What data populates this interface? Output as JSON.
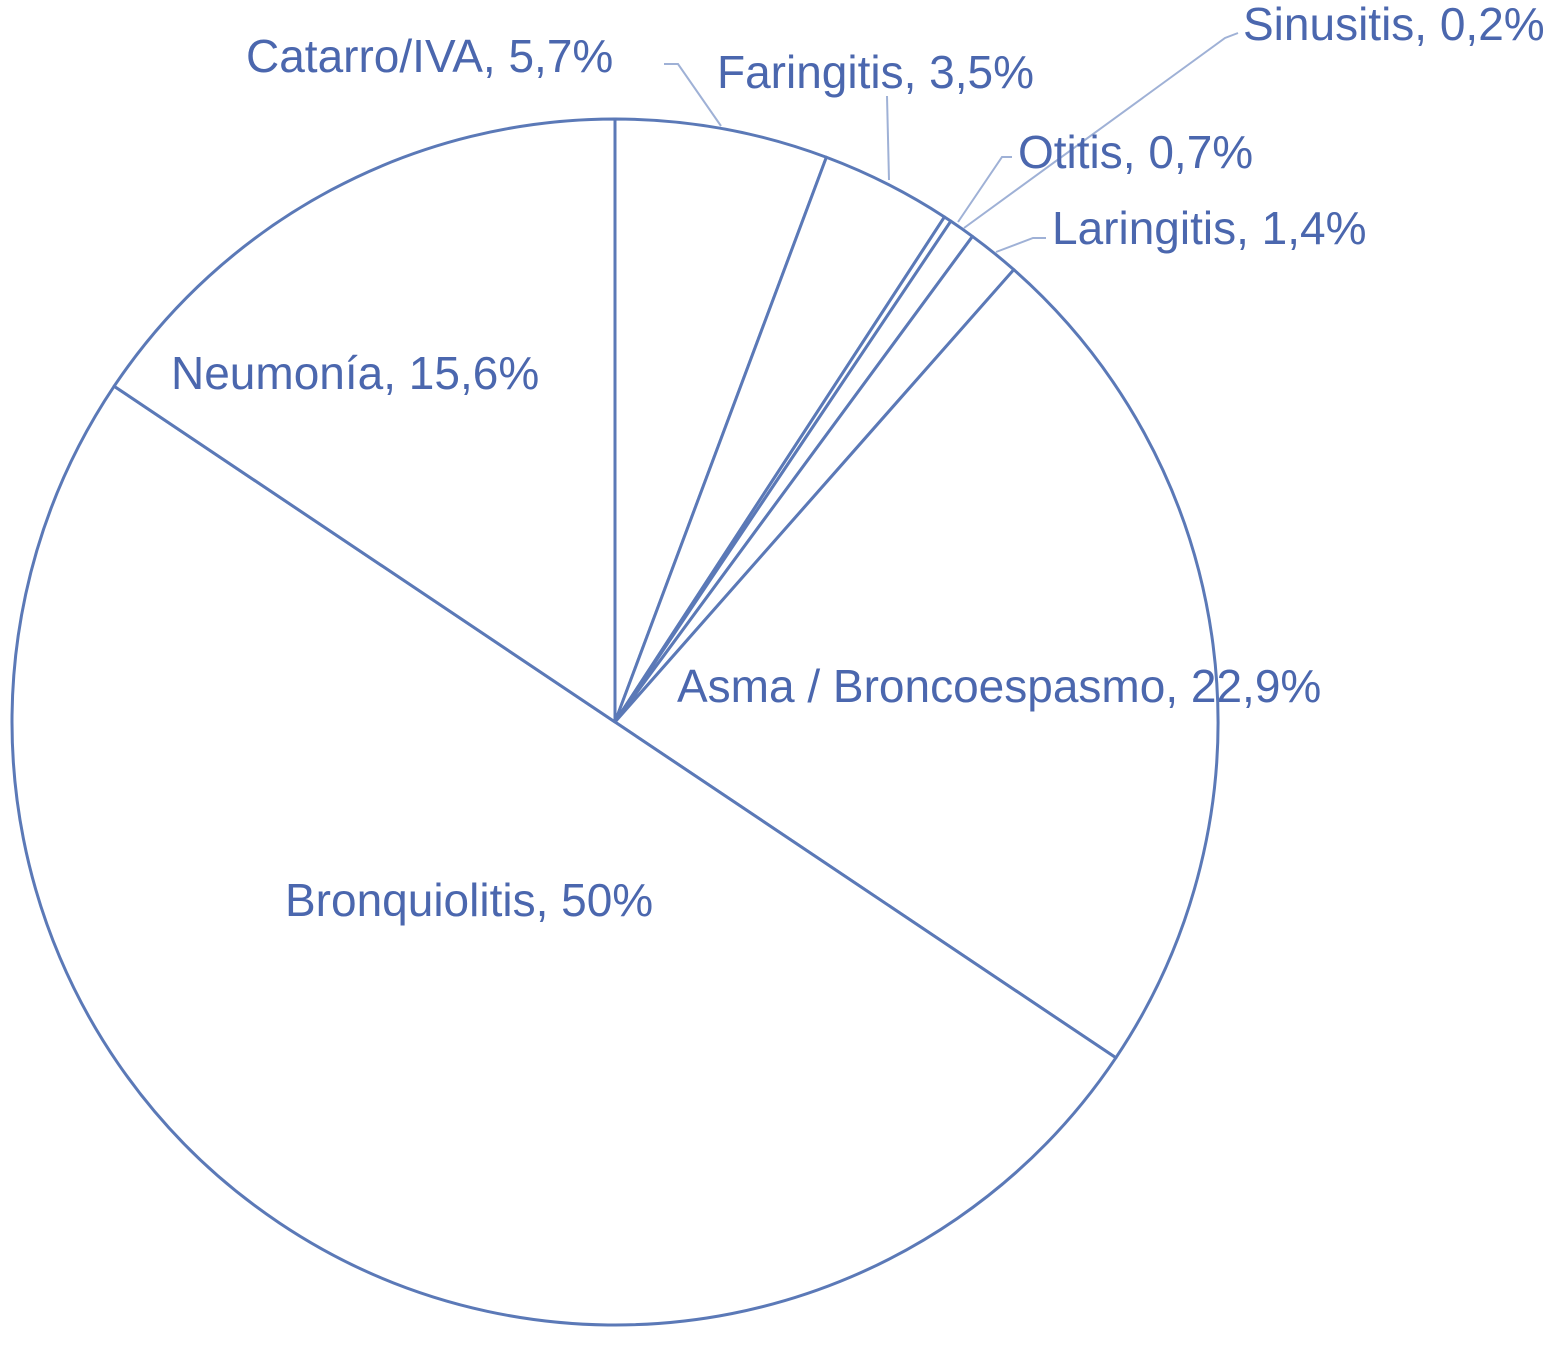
{
  "chart_data": {
    "type": "pie",
    "title": "",
    "colors": {
      "stroke": "#5B79B7",
      "fill": "#ffffff",
      "text": "#4B67AE",
      "leader": "#9FB1D6"
    },
    "start": "12 o'clock",
    "direction": "clockwise",
    "slices": [
      {
        "label": "Catarro/IVA, 5,7%",
        "name": "Catarro/IVA",
        "value": 5.7
      },
      {
        "label": "Faringitis, 3,5%",
        "name": "Faringitis",
        "value": 3.5
      },
      {
        "label": "Sinusitis, 0,2%",
        "name": "Sinusitis",
        "value": 0.2
      },
      {
        "label": "Otitis, 0,7%",
        "name": "Otitis",
        "value": 0.7
      },
      {
        "label": "Laringitis, 1,4%",
        "name": "Laringitis",
        "value": 1.4
      },
      {
        "label": "Asma / Broncoespasmo, 22,9%",
        "name": "Asma / Broncoespasmo",
        "value": 22.9
      },
      {
        "label": "Bronquiolitis, 50%",
        "name": "Bronquiolitis",
        "value": 50
      },
      {
        "label": "Neumonía, 15,6%",
        "name": "Neumonía",
        "value": 15.6
      }
    ]
  }
}
